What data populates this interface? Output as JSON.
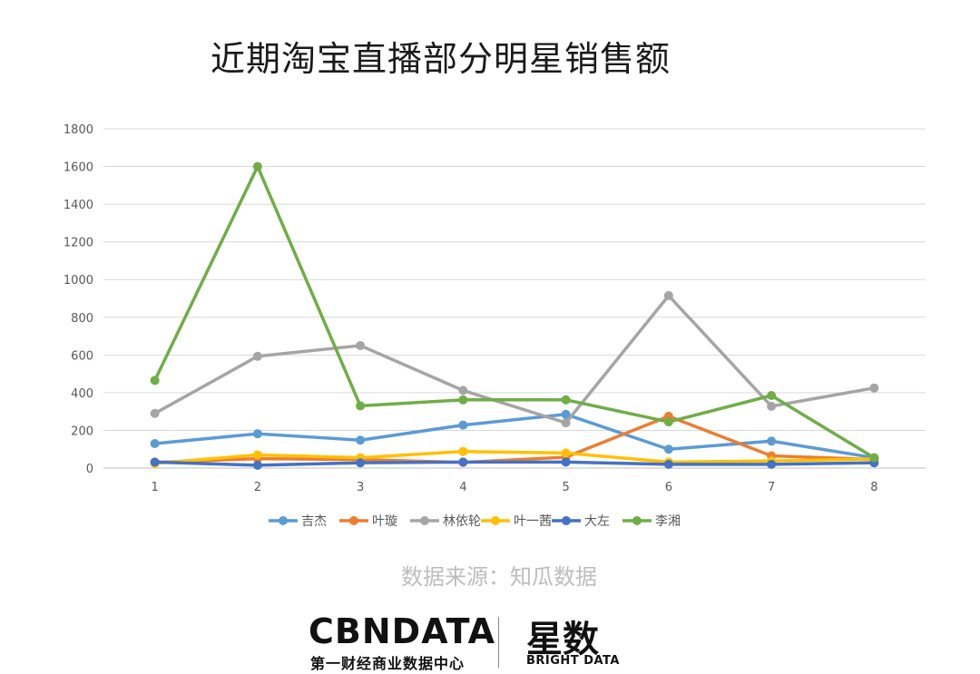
{
  "header": {
    "title": "近期淘宝直播部分明星销售额"
  },
  "source": {
    "text": "数据来源：知瓜数据"
  },
  "branding": {
    "cbndata_name": "CBNDATA",
    "cbndata_tagline": "第一财经商业数据中心",
    "bright_name": "星数",
    "bright_tagline": "BRIGHT DATA"
  },
  "chart_data": {
    "type": "line",
    "title": "近期淘宝直播部分明星销售额",
    "xlabel": "",
    "ylabel": "",
    "x": [
      1,
      2,
      3,
      4,
      5,
      6,
      7,
      8
    ],
    "ylim": [
      0,
      1800
    ],
    "yticks": [
      0,
      200,
      400,
      600,
      800,
      1000,
      1200,
      1400,
      1600,
      1800
    ],
    "grid": true,
    "legend_position": "bottom",
    "series": [
      {
        "name": "吉杰",
        "color": "#5B9BD5",
        "values": [
          130,
          182,
          148,
          228,
          285,
          100,
          143,
          55
        ]
      },
      {
        "name": "叶璇",
        "color": "#ED7D31",
        "values": [
          30,
          50,
          45,
          30,
          58,
          275,
          65,
          45
        ]
      },
      {
        "name": "林依轮",
        "color": "#A5A5A5",
        "values": [
          290,
          593,
          650,
          412,
          240,
          915,
          328,
          425
        ]
      },
      {
        "name": "叶一茜",
        "color": "#FFC000",
        "values": [
          25,
          70,
          55,
          88,
          80,
          32,
          38,
          48
        ]
      },
      {
        "name": "大左",
        "color": "#4472C4",
        "values": [
          32,
          15,
          28,
          32,
          32,
          20,
          20,
          28
        ]
      },
      {
        "name": "李湘",
        "color": "#70AD47",
        "values": [
          465,
          1600,
          330,
          362,
          362,
          245,
          385,
          55
        ]
      }
    ]
  }
}
